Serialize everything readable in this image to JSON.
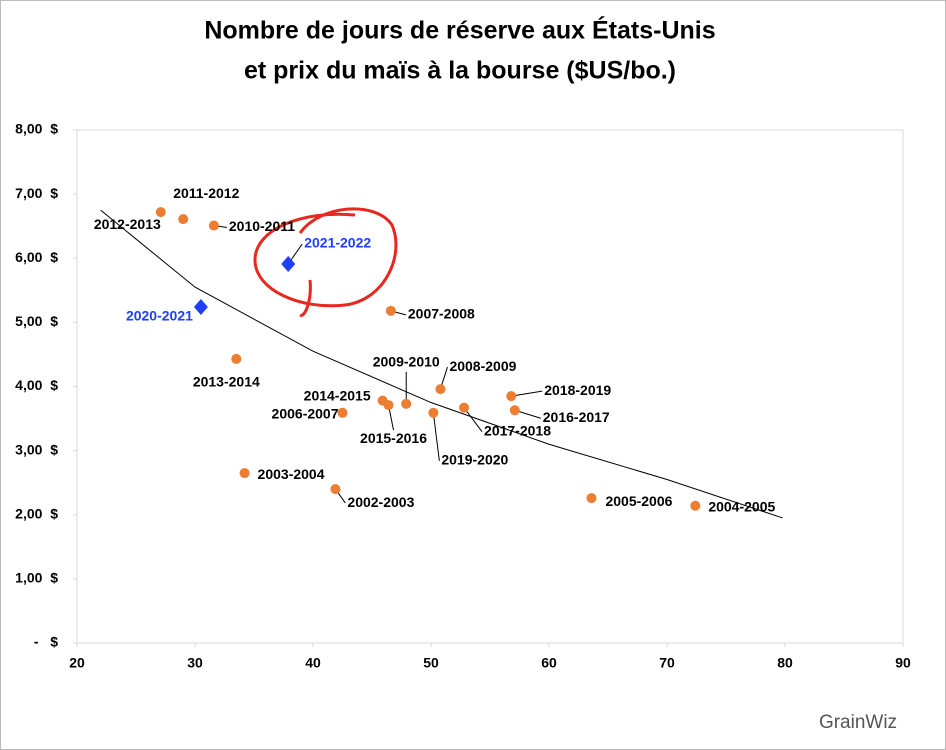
{
  "chart_data": {
    "type": "scatter",
    "title": [
      "Nombre de jours de réserve aux États-Unis",
      "et prix du maïs à la bourse ($US/bo.)"
    ],
    "xlim": [
      20,
      90
    ],
    "xticks": [
      20,
      30,
      40,
      50,
      60,
      70,
      80,
      90
    ],
    "ylim": [
      0,
      8
    ],
    "yticks": [
      {
        "value": 0,
        "label": "-   $"
      },
      {
        "value": 1,
        "label": "1,00  $"
      },
      {
        "value": 2,
        "label": "2,00  $"
      },
      {
        "value": 3,
        "label": "3,00  $"
      },
      {
        "value": 4,
        "label": "4,00  $"
      },
      {
        "value": 5,
        "label": "5,00  $"
      },
      {
        "value": 6,
        "label": "6,00  $"
      },
      {
        "value": 7,
        "label": "7,00  $"
      },
      {
        "value": 8,
        "label": "8,00  $"
      }
    ],
    "grid": false,
    "series": [
      {
        "color": "#ed7d31",
        "marker": "circle",
        "labels": [
          "2012-2013",
          "2011-2012",
          "2010-2011",
          "2007-2008",
          "2013-2014",
          "2008-2009",
          "2018-2019",
          "2009-2010",
          "2014-2015",
          "2015-2016",
          "2006-2007",
          "2016-2017",
          "2017-2018",
          "2019-2020",
          "2003-2004",
          "2002-2003",
          "2005-2006",
          "2004-2005"
        ],
        "x": [
          27.1,
          29.0,
          31.6,
          46.6,
          33.5,
          50.8,
          56.8,
          47.9,
          45.9,
          46.4,
          42.5,
          57.1,
          52.8,
          50.2,
          34.2,
          41.9,
          63.6,
          72.4
        ],
        "values": [
          6.72,
          6.61,
          6.51,
          5.18,
          4.43,
          3.96,
          3.85,
          3.73,
          3.78,
          3.71,
          3.59,
          3.63,
          3.67,
          3.59,
          2.65,
          2.4,
          2.26,
          2.14
        ]
      },
      {
        "color": "#1f3fff",
        "marker": "diamond",
        "labels": [
          "2021-2022",
          "2020-2021"
        ],
        "x": [
          37.9,
          30.5
        ],
        "values": [
          5.91,
          5.24
        ]
      }
    ],
    "trendline": {
      "color": "#000000",
      "x": [
        22,
        30,
        40,
        50,
        60,
        70,
        79.8
      ],
      "values": [
        6.75,
        5.55,
        4.55,
        3.75,
        3.1,
        2.55,
        1.95
      ]
    }
  },
  "logo": "GrainWiz"
}
